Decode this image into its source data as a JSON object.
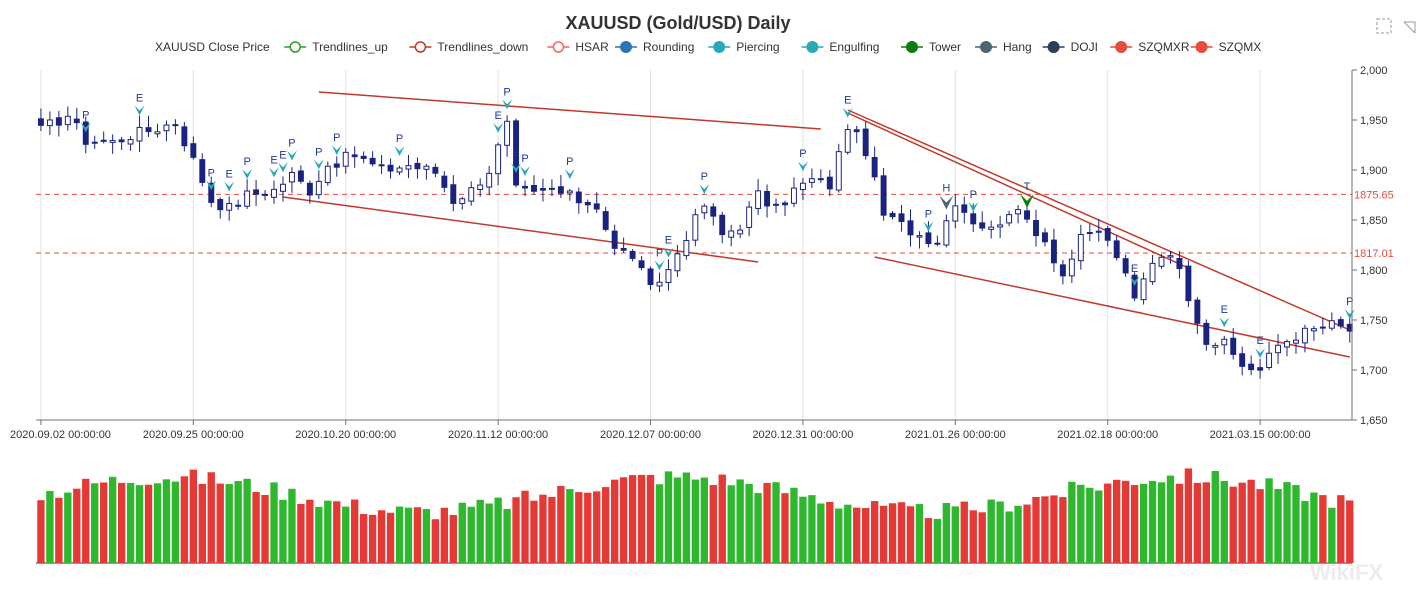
{
  "chart_data": {
    "type": "candlestick",
    "title": "XAUUSD (Gold/USD) Daily",
    "legend": [
      {
        "name": "XAUUSD Close Price",
        "icon": "none",
        "color": "#333333"
      },
      {
        "name": "Trendlines_up",
        "icon": "ring",
        "color": "#2ca02c"
      },
      {
        "name": "Trendlines_down",
        "icon": "ring",
        "color": "#c0392b"
      },
      {
        "name": "HSAR",
        "icon": "ring",
        "color": "#ee6666"
      },
      {
        "name": "Rounding",
        "icon": "dot",
        "color": "#2a75b3"
      },
      {
        "name": "Piercing",
        "icon": "dot",
        "color": "#28a9b5"
      },
      {
        "name": "Engulfing",
        "icon": "dot",
        "color": "#28a9b5"
      },
      {
        "name": "Tower",
        "icon": "dot",
        "color": "#0a7d0a"
      },
      {
        "name": "Hang",
        "icon": "dot",
        "color": "#4f6472"
      },
      {
        "name": "DOJI",
        "icon": "dot",
        "color": "#2c3e5a"
      },
      {
        "name": "SZQMXR",
        "icon": "dot",
        "color": "#e74c3c"
      },
      {
        "name": "SZQMX",
        "icon": "dot",
        "color": "#e74c3c"
      }
    ],
    "ylim": [
      1650,
      2000
    ],
    "yticks": [
      1650,
      1700,
      1750,
      1800,
      1850,
      1900,
      1950,
      2000
    ],
    "x_tick_labels": [
      {
        "i": 0,
        "label": "2020.09.02 00:00:00"
      },
      {
        "i": 17,
        "label": "2020.09.25 00:00:00"
      },
      {
        "i": 34,
        "label": "2020.10.20 00:00:00"
      },
      {
        "i": 51,
        "label": "2020.11.12 00:00:00"
      },
      {
        "i": 68,
        "label": "2020.12.07 00:00:00"
      },
      {
        "i": 85,
        "label": "2020.12.31 00:00:00"
      },
      {
        "i": 102,
        "label": "2021.01.26 00:00:00"
      },
      {
        "i": 119,
        "label": "2021.02.18 00:00:00"
      },
      {
        "i": 136,
        "label": "2021.03.15 00:00:00"
      }
    ],
    "n_bars": 147,
    "close_anchors": [
      [
        0,
        1940
      ],
      [
        3,
        1955
      ],
      [
        5,
        1930
      ],
      [
        8,
        1928
      ],
      [
        10,
        1935
      ],
      [
        13,
        1942
      ],
      [
        15,
        1948
      ],
      [
        17,
        1910
      ],
      [
        19,
        1870
      ],
      [
        21,
        1862
      ],
      [
        23,
        1875
      ],
      [
        26,
        1880
      ],
      [
        28,
        1895
      ],
      [
        30,
        1880
      ],
      [
        32,
        1905
      ],
      [
        35,
        1915
      ],
      [
        38,
        1900
      ],
      [
        41,
        1905
      ],
      [
        44,
        1898
      ],
      [
        46,
        1870
      ],
      [
        48,
        1880
      ],
      [
        50,
        1900
      ],
      [
        52,
        1945
      ],
      [
        53,
        1880
      ],
      [
        55,
        1875
      ],
      [
        57,
        1880
      ],
      [
        60,
        1870
      ],
      [
        62,
        1865
      ],
      [
        64,
        1820
      ],
      [
        66,
        1815
      ],
      [
        68,
        1780
      ],
      [
        70,
        1800
      ],
      [
        72,
        1835
      ],
      [
        74,
        1865
      ],
      [
        76,
        1835
      ],
      [
        78,
        1845
      ],
      [
        80,
        1875
      ],
      [
        82,
        1860
      ],
      [
        84,
        1880
      ],
      [
        86,
        1890
      ],
      [
        88,
        1885
      ],
      [
        90,
        1945
      ],
      [
        92,
        1920
      ],
      [
        94,
        1855
      ],
      [
        96,
        1845
      ],
      [
        98,
        1835
      ],
      [
        100,
        1830
      ],
      [
        102,
        1870
      ],
      [
        104,
        1850
      ],
      [
        106,
        1840
      ],
      [
        108,
        1860
      ],
      [
        110,
        1850
      ],
      [
        112,
        1830
      ],
      [
        114,
        1795
      ],
      [
        116,
        1830
      ],
      [
        118,
        1840
      ],
      [
        120,
        1815
      ],
      [
        122,
        1770
      ],
      [
        124,
        1810
      ],
      [
        126,
        1820
      ],
      [
        128,
        1775
      ],
      [
        130,
        1730
      ],
      [
        132,
        1725
      ],
      [
        134,
        1705
      ],
      [
        136,
        1700
      ],
      [
        138,
        1725
      ],
      [
        140,
        1735
      ],
      [
        142,
        1740
      ],
      [
        144,
        1745
      ],
      [
        146,
        1740
      ]
    ],
    "h_lines": [
      {
        "value": 1875.65,
        "label": "1875.65",
        "color": "#e74c3c"
      },
      {
        "value": 1817.01,
        "label": "1817.01",
        "color": "#e74c3c"
      }
    ],
    "trendlines": [
      {
        "x1": 31,
        "y1": 1978,
        "x2": 87,
        "y2": 1941,
        "color": "#c0392b"
      },
      {
        "x1": 27,
        "y1": 1873,
        "x2": 80,
        "y2": 1808,
        "color": "#c0392b"
      },
      {
        "x1": 90,
        "y1": 1960,
        "x2": 146,
        "y2": 1740,
        "color": "#c0392b"
      },
      {
        "x1": 90,
        "y1": 1957,
        "x2": 128,
        "y2": 1802,
        "color": "#c0392b"
      },
      {
        "x1": 93,
        "y1": 1813,
        "x2": 146,
        "y2": 1713,
        "color": "#c0392b"
      }
    ],
    "patterns": [
      {
        "i": 5,
        "label": "P"
      },
      {
        "i": 11,
        "label": "E"
      },
      {
        "i": 19,
        "label": "P"
      },
      {
        "i": 21,
        "label": "E"
      },
      {
        "i": 23,
        "label": "P"
      },
      {
        "i": 26,
        "label": "E"
      },
      {
        "i": 27,
        "label": "E"
      },
      {
        "i": 28,
        "label": "P"
      },
      {
        "i": 31,
        "label": "P"
      },
      {
        "i": 33,
        "label": "P"
      },
      {
        "i": 40,
        "label": "P"
      },
      {
        "i": 51,
        "label": "E"
      },
      {
        "i": 52,
        "label": "P"
      },
      {
        "i": 53,
        "label": "P"
      },
      {
        "i": 54,
        "label": "P"
      },
      {
        "i": 59,
        "label": "P"
      },
      {
        "i": 69,
        "label": "P"
      },
      {
        "i": 70,
        "label": "E"
      },
      {
        "i": 74,
        "label": "P"
      },
      {
        "i": 85,
        "label": "P"
      },
      {
        "i": 90,
        "label": "E"
      },
      {
        "i": 99,
        "label": "P"
      },
      {
        "i": 104,
        "label": "P"
      },
      {
        "i": 110,
        "label": "T"
      },
      {
        "i": 122,
        "label": "E"
      },
      {
        "i": 132,
        "label": "E"
      },
      {
        "i": 136,
        "label": "E"
      },
      {
        "i": 146,
        "label": "P"
      }
    ],
    "pattern_markers": [
      {
        "i": 101,
        "label": "H",
        "color": "#4f6472"
      }
    ],
    "colors": {
      "bear_body": "#1a237e",
      "bull_body": "#ffffff",
      "wick": "#1a237e",
      "volume_up": "#2eb82e",
      "volume_down": "#e53935",
      "arrow_piercing": "#28a9b5",
      "arrow_tower": "#0a7d0a"
    }
  },
  "watermark": "WikiFX"
}
